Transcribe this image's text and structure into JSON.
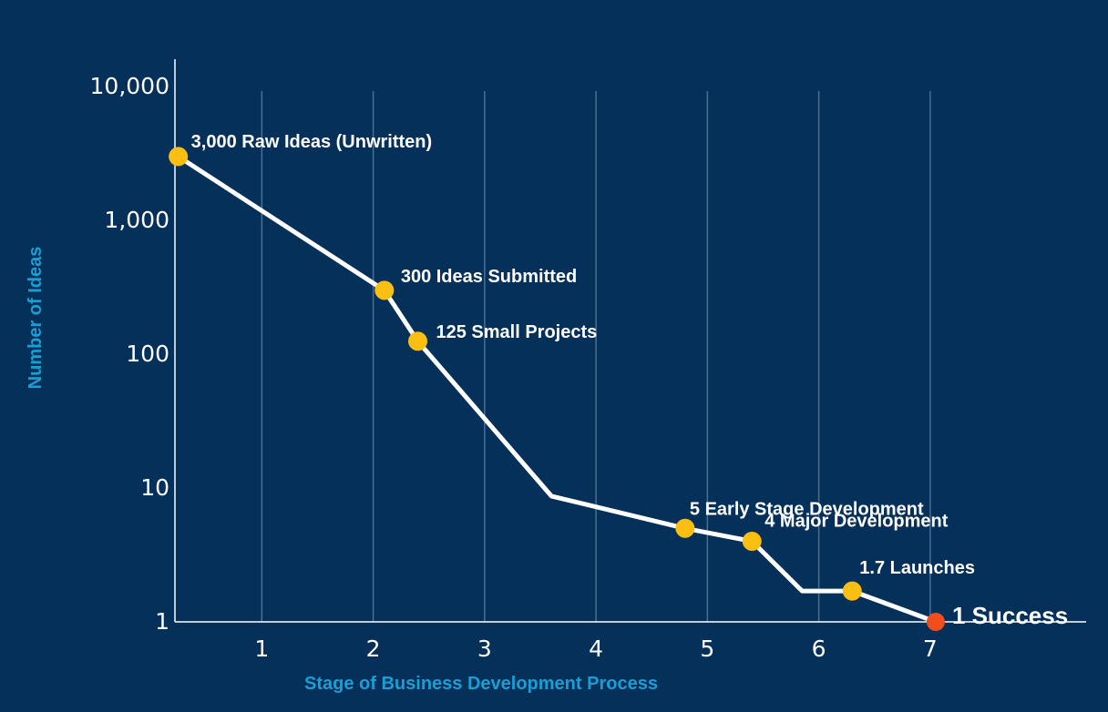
{
  "chart_data": {
    "type": "line",
    "title": "",
    "xlabel": "Stage of Business Development Process",
    "ylabel": "Number of Ideas",
    "yscale": "log",
    "ylim": [
      1,
      10000
    ],
    "xlim": [
      0.22,
      8.4
    ],
    "grid": "vertical",
    "x_ticks": [
      1,
      2,
      3,
      4,
      5,
      6,
      7
    ],
    "x_tick_labels": [
      "1",
      "2",
      "3",
      "4",
      "5",
      "6",
      "7"
    ],
    "y_ticks": [
      1,
      10,
      100,
      1000,
      10000
    ],
    "y_tick_labels": [
      "1",
      "10",
      "100",
      "1,000",
      "10,000"
    ],
    "series": [
      {
        "x": [
          0.25,
          2.1,
          2.4,
          3.6,
          4.8,
          5.4,
          5.85,
          6.3,
          7.05
        ],
        "y": [
          3000,
          300,
          125,
          8.7,
          5,
          4,
          1.7,
          1.7,
          1
        ]
      }
    ],
    "annotations": [
      {
        "x": 0.25,
        "y": 3000,
        "text": "3,000 Raw Ideas (Unwritten)",
        "marker": "#fbbf14"
      },
      {
        "x": 2.1,
        "y": 300,
        "text": "300 Ideas Submitted",
        "marker": "#fbbf14"
      },
      {
        "x": 2.4,
        "y": 125,
        "text": "125 Small Projects",
        "marker": "#fbbf14"
      },
      {
        "x": 4.8,
        "y": 5,
        "text": "5 Early Stage Development",
        "marker": "#fbbf14"
      },
      {
        "x": 5.4,
        "y": 4,
        "text": "4 Major Development",
        "marker": "#fbbf14"
      },
      {
        "x": 6.3,
        "y": 1.7,
        "text": "1.7 Launches",
        "marker": "#fbbf14"
      },
      {
        "x": 7.05,
        "y": 1,
        "text": "1 Success",
        "marker": "#f04e1e",
        "highlight": true
      }
    ]
  },
  "colors": {
    "background": "#04305a",
    "line": "#ffffff",
    "marker": "#fbbf14",
    "success_marker": "#f04e1e",
    "success_text": "#fbbf14",
    "axis_title": "#1b9ed3",
    "grid": "#4a6f93"
  }
}
